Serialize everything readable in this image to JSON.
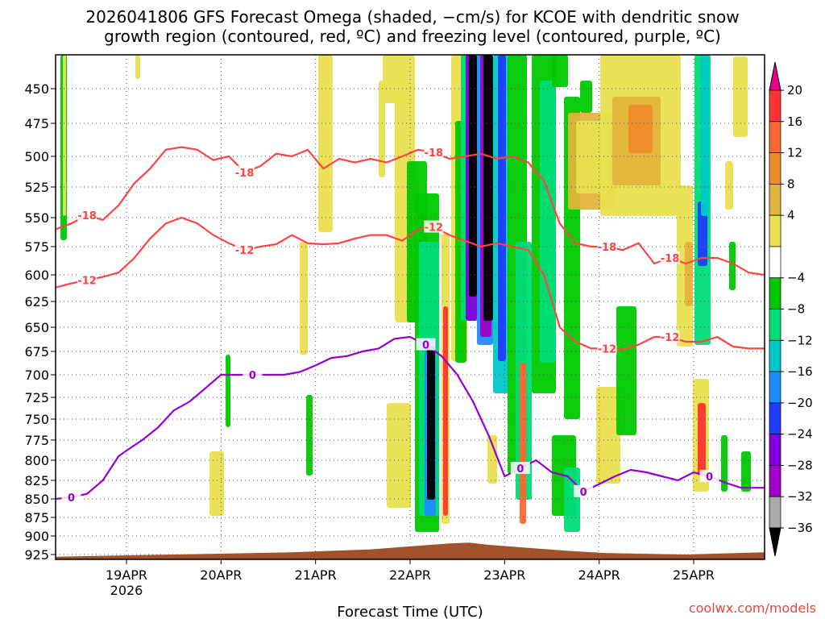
{
  "chart_data": {
    "type": "heatmap",
    "title_line1": "2026041806 GFS Forecast Omega (shaded, −cm/s) for KCOE with dendritic snow",
    "title_line2": "growth region (contoured, red, ºC) and freezing level (contoured, purple, ºC)",
    "xlabel": "Forecast Time (UTC)",
    "credit": "coolwx.com/models",
    "x_range_hours": [
      0,
      180
    ],
    "y_levels": [
      450,
      475,
      500,
      525,
      550,
      575,
      600,
      625,
      650,
      675,
      700,
      725,
      750,
      775,
      800,
      825,
      850,
      875,
      900,
      925
    ],
    "x_ticks": [
      {
        "hour": 18,
        "label": "19APR",
        "sub": "2026"
      },
      {
        "hour": 42,
        "label": "20APR",
        "sub": ""
      },
      {
        "hour": 66,
        "label": "21APR",
        "sub": ""
      },
      {
        "hour": 90,
        "label": "22APR",
        "sub": ""
      },
      {
        "hour": 114,
        "label": "23APR",
        "sub": ""
      },
      {
        "hour": 138,
        "label": "24APR",
        "sub": ""
      },
      {
        "hour": 162,
        "label": "25APR",
        "sub": ""
      }
    ],
    "colorbar": {
      "labels": [
        "20",
        "16",
        "12",
        "8",
        "4",
        "−4",
        "−8",
        "−12",
        "−16",
        "−20",
        "−24",
        "−28",
        "−32",
        "−36"
      ],
      "colors": [
        "#e8008a",
        "#ff3333",
        "#ff6633",
        "#f08c28",
        "#e0b43c",
        "#e8e050",
        "#ffffff",
        "#00c800",
        "#00dc78",
        "#00c8c8",
        "#1e8cff",
        "#1e3cff",
        "#8200dc",
        "#a000c8",
        "#aaaaaa",
        "#000000"
      ]
    },
    "contours": [
      {
        "label": "-18",
        "color": "#ff4444",
        "points": [
          [
            0,
            560
          ],
          [
            4,
            555
          ],
          [
            8,
            548
          ],
          [
            12,
            552
          ],
          [
            16,
            540
          ],
          [
            20,
            522
          ],
          [
            24,
            510
          ],
          [
            28,
            495
          ],
          [
            32,
            493
          ],
          [
            36,
            495
          ],
          [
            40,
            503
          ],
          [
            44,
            500
          ],
          [
            48,
            513
          ],
          [
            52,
            508
          ],
          [
            56,
            498
          ],
          [
            60,
            500
          ],
          [
            64,
            495
          ],
          [
            68,
            510
          ],
          [
            72,
            502
          ],
          [
            76,
            505
          ],
          [
            80,
            502
          ],
          [
            84,
            505
          ],
          [
            88,
            500
          ],
          [
            92,
            495
          ],
          [
            96,
            497
          ],
          [
            100,
            502
          ],
          [
            104,
            500
          ],
          [
            108,
            498
          ],
          [
            112,
            502
          ],
          [
            116,
            500
          ],
          [
            120,
            505
          ],
          [
            124,
            520
          ],
          [
            128,
            555
          ],
          [
            132,
            572
          ],
          [
            136,
            575
          ],
          [
            140,
            575
          ],
          [
            144,
            578
          ],
          [
            148,
            572
          ],
          [
            152,
            590
          ],
          [
            156,
            585
          ],
          [
            160,
            590
          ],
          [
            164,
            585
          ],
          [
            168,
            585
          ],
          [
            172,
            590
          ],
          [
            176,
            598
          ],
          [
            180,
            600
          ]
        ]
      },
      {
        "label": "-12",
        "color": "#ff4444",
        "points": [
          [
            0,
            612
          ],
          [
            4,
            608
          ],
          [
            8,
            605
          ],
          [
            12,
            602
          ],
          [
            16,
            598
          ],
          [
            20,
            585
          ],
          [
            24,
            568
          ],
          [
            28,
            555
          ],
          [
            32,
            550
          ],
          [
            36,
            555
          ],
          [
            40,
            565
          ],
          [
            44,
            572
          ],
          [
            48,
            578
          ],
          [
            52,
            575
          ],
          [
            56,
            573
          ],
          [
            60,
            565
          ],
          [
            64,
            572
          ],
          [
            68,
            573
          ],
          [
            72,
            572
          ],
          [
            76,
            568
          ],
          [
            80,
            565
          ],
          [
            84,
            565
          ],
          [
            88,
            570
          ],
          [
            92,
            560
          ],
          [
            96,
            558
          ],
          [
            100,
            565
          ],
          [
            104,
            570
          ],
          [
            108,
            575
          ],
          [
            112,
            572
          ],
          [
            116,
            575
          ],
          [
            120,
            578
          ],
          [
            124,
            600
          ],
          [
            128,
            650
          ],
          [
            132,
            665
          ],
          [
            136,
            672
          ],
          [
            140,
            672
          ],
          [
            144,
            673
          ],
          [
            148,
            668
          ],
          [
            152,
            660
          ],
          [
            156,
            660
          ],
          [
            160,
            665
          ],
          [
            164,
            665
          ],
          [
            168,
            660
          ],
          [
            172,
            670
          ],
          [
            176,
            672
          ],
          [
            180,
            672
          ]
        ]
      },
      {
        "label": "0",
        "color": "#9400d3",
        "points": [
          [
            0,
            850
          ],
          [
            4,
            848
          ],
          [
            8,
            843
          ],
          [
            12,
            825
          ],
          [
            16,
            795
          ],
          [
            18,
            788
          ],
          [
            22,
            775
          ],
          [
            26,
            760
          ],
          [
            30,
            740
          ],
          [
            34,
            730
          ],
          [
            38,
            715
          ],
          [
            42,
            700
          ],
          [
            46,
            700
          ],
          [
            50,
            700
          ],
          [
            54,
            700
          ],
          [
            58,
            700
          ],
          [
            62,
            697
          ],
          [
            66,
            690
          ],
          [
            70,
            682
          ],
          [
            74,
            680
          ],
          [
            78,
            675
          ],
          [
            82,
            672
          ],
          [
            86,
            662
          ],
          [
            90,
            660
          ],
          [
            94,
            668
          ],
          [
            98,
            680
          ],
          [
            102,
            700
          ],
          [
            106,
            730
          ],
          [
            110,
            770
          ],
          [
            114,
            820
          ],
          [
            118,
            810
          ],
          [
            122,
            800
          ],
          [
            126,
            815
          ],
          [
            130,
            820
          ],
          [
            134,
            840
          ],
          [
            138,
            830
          ],
          [
            142,
            820
          ],
          [
            146,
            812
          ],
          [
            150,
            815
          ],
          [
            154,
            820
          ],
          [
            158,
            825
          ],
          [
            162,
            815
          ],
          [
            166,
            820
          ],
          [
            170,
            828
          ],
          [
            174,
            835
          ],
          [
            178,
            835
          ],
          [
            180,
            835
          ]
        ]
      }
    ]
  }
}
